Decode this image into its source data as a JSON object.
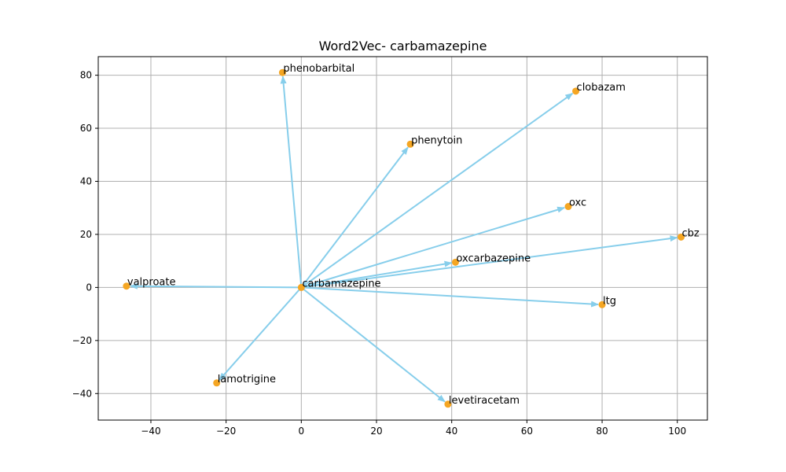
{
  "chart_data": {
    "type": "scatter",
    "title": "Word2Vec- carbamazepine",
    "xlabel": "",
    "ylabel": "",
    "xlim": [
      -54,
      108
    ],
    "ylim": [
      -50,
      87
    ],
    "xticks": [
      -40,
      -20,
      0,
      20,
      40,
      60,
      80,
      100
    ],
    "yticks": [
      -40,
      -20,
      0,
      20,
      40,
      60,
      80
    ],
    "xtick_labels": [
      "−40",
      "−20",
      "0",
      "20",
      "40",
      "60",
      "80",
      "100"
    ],
    "ytick_labels": [
      "−40",
      "−20",
      "0",
      "20",
      "40",
      "60",
      "80"
    ],
    "grid": true,
    "origin": {
      "label": "carbamazepine",
      "x": 0,
      "y": 0
    },
    "points": [
      {
        "label": "phenobarbital",
        "x": -5,
        "y": 81
      },
      {
        "label": "clobazam",
        "x": 73,
        "y": 74
      },
      {
        "label": "phenytoin",
        "x": 29,
        "y": 54
      },
      {
        "label": "oxc",
        "x": 71,
        "y": 30.5
      },
      {
        "label": "cbz",
        "x": 101,
        "y": 19
      },
      {
        "label": "oxcarbazepine",
        "x": 41,
        "y": 9.5
      },
      {
        "label": "valproate",
        "x": -46.5,
        "y": 0.5
      },
      {
        "label": "ltg",
        "x": 80,
        "y": -6.5
      },
      {
        "label": "lamotrigine",
        "x": -22.5,
        "y": -36
      },
      {
        "label": "levetiracetam",
        "x": 39,
        "y": -44
      }
    ],
    "colors": {
      "point": "#f5a623",
      "arrow": "#87ceeb",
      "grid": "#b0b0b0",
      "axis": "#000000"
    }
  }
}
